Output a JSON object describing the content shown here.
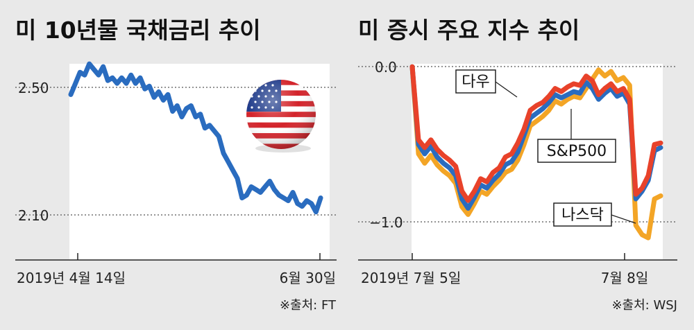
{
  "chart_data": [
    {
      "type": "line",
      "title": "미 10년물 국채금리 추이",
      "yticks": [
        "2.50",
        "2.10"
      ],
      "ytick_values": [
        2.5,
        2.1
      ],
      "xticks": [
        "2019년 4월 14일",
        "6월 30일"
      ],
      "ylim": [
        1.96,
        2.62
      ],
      "source": "※출처: FT",
      "grid": "dotted horizontal at ticks",
      "series": [
        {
          "color": "#2a6cbf",
          "values": [
            2.49,
            2.53,
            2.57,
            2.56,
            2.6,
            2.58,
            2.56,
            2.59,
            2.54,
            2.55,
            2.53,
            2.55,
            2.53,
            2.56,
            2.53,
            2.55,
            2.51,
            2.52,
            2.48,
            2.5,
            2.47,
            2.49,
            2.43,
            2.45,
            2.41,
            2.44,
            2.45,
            2.41,
            2.42,
            2.37,
            2.38,
            2.36,
            2.34,
            2.28,
            2.25,
            2.22,
            2.19,
            2.12,
            2.13,
            2.16,
            2.15,
            2.14,
            2.16,
            2.18,
            2.15,
            2.13,
            2.12,
            2.11,
            2.14,
            2.1,
            2.09,
            2.11,
            2.1,
            2.07,
            2.12
          ]
        }
      ]
    },
    {
      "type": "line",
      "title": "미 증시 주요 지수 추이",
      "yticks": [
        "0.0",
        "−1.0"
      ],
      "ytick_values": [
        0,
        -1
      ],
      "xticks": [
        "2019년 7월 5일",
        "7월 8일"
      ],
      "ylim": [
        -1.22,
        0.05
      ],
      "source": "※출처: WSJ",
      "grid": "dotted horizontal at ticks",
      "series": [
        {
          "name": "다우",
          "color": "#e8422a",
          "values": [
            0.0,
            -0.47,
            -0.52,
            -0.47,
            -0.53,
            -0.57,
            -0.6,
            -0.64,
            -0.8,
            -0.86,
            -0.8,
            -0.72,
            -0.74,
            -0.68,
            -0.65,
            -0.58,
            -0.56,
            -0.49,
            -0.4,
            -0.28,
            -0.25,
            -0.23,
            -0.19,
            -0.14,
            -0.16,
            -0.13,
            -0.11,
            -0.12,
            -0.06,
            -0.09,
            -0.18,
            -0.14,
            -0.11,
            -0.16,
            -0.14,
            -0.21,
            -0.82,
            -0.78,
            -0.7,
            -0.5,
            -0.49
          ]
        },
        {
          "name": "S&P500",
          "color": "#2a6cbf",
          "values": [
            0.0,
            -0.5,
            -0.56,
            -0.51,
            -0.58,
            -0.62,
            -0.65,
            -0.7,
            -0.85,
            -0.91,
            -0.84,
            -0.76,
            -0.78,
            -0.73,
            -0.69,
            -0.63,
            -0.61,
            -0.55,
            -0.44,
            -0.33,
            -0.3,
            -0.27,
            -0.23,
            -0.18,
            -0.2,
            -0.18,
            -0.16,
            -0.17,
            -0.1,
            -0.14,
            -0.21,
            -0.17,
            -0.14,
            -0.19,
            -0.17,
            -0.24,
            -0.85,
            -0.8,
            -0.73,
            -0.54,
            -0.52
          ]
        },
        {
          "name": "나스닥",
          "color": "#f3a526",
          "values": [
            0.0,
            -0.56,
            -0.62,
            -0.57,
            -0.63,
            -0.67,
            -0.7,
            -0.75,
            -0.9,
            -0.95,
            -0.88,
            -0.8,
            -0.82,
            -0.77,
            -0.73,
            -0.68,
            -0.66,
            -0.6,
            -0.5,
            -0.38,
            -0.35,
            -0.32,
            -0.28,
            -0.22,
            -0.24,
            -0.21,
            -0.19,
            -0.2,
            -0.14,
            -0.08,
            -0.02,
            -0.06,
            -0.03,
            -0.09,
            -0.07,
            -0.12,
            -1.02,
            -1.08,
            -1.1,
            -0.85,
            -0.83
          ]
        }
      ]
    }
  ]
}
